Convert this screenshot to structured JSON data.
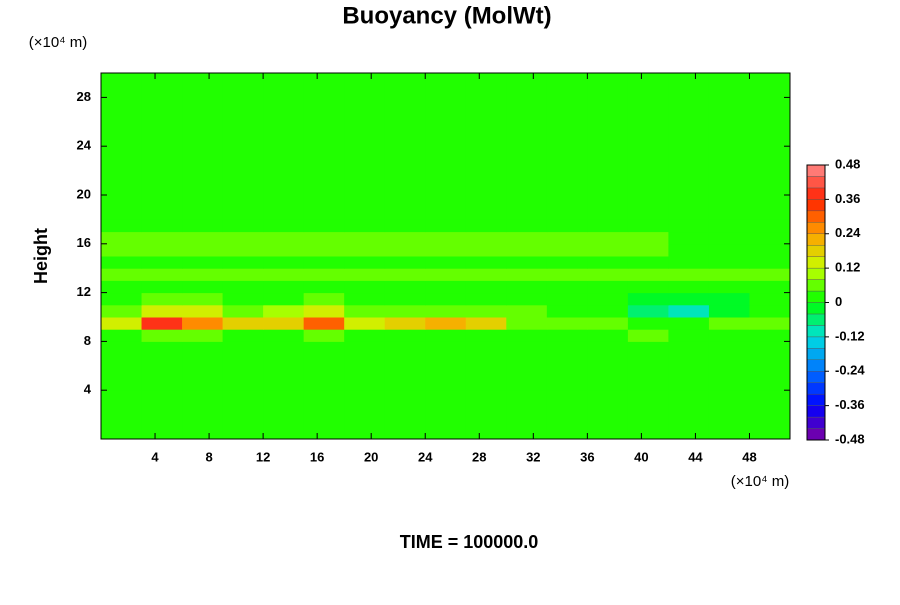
{
  "chart_data": {
    "type": "heatmap",
    "title": "Buoyancy (MolWt)",
    "y_label": "Height",
    "y_unit": "(×10⁴ m)",
    "x_unit": "(×10⁴ m)",
    "footer": "TIME = 100000.0",
    "x_edges": [
      0,
      3,
      6,
      9,
      12,
      15,
      18,
      21,
      24,
      27,
      30,
      33,
      36,
      39,
      42,
      45,
      48,
      51
    ],
    "y_edges": [
      0,
      4,
      8,
      9,
      10,
      11,
      12,
      13,
      14,
      15,
      16,
      17,
      18,
      30
    ],
    "z": [
      [
        0,
        0,
        0,
        0,
        0,
        0,
        0,
        0,
        0,
        0,
        0,
        0,
        0,
        0,
        0,
        0,
        0
      ],
      [
        0,
        0,
        0,
        0,
        0,
        0,
        0,
        0,
        0,
        0,
        0,
        0,
        0,
        0,
        0,
        0,
        0
      ],
      [
        0.02,
        0.04,
        0.04,
        0.02,
        0.02,
        0.04,
        0.02,
        0.02,
        0.02,
        0.02,
        0.02,
        0.02,
        0.02,
        0.04,
        0.02,
        0.02,
        0.02
      ],
      [
        0.12,
        0.36,
        0.24,
        0.16,
        0.2,
        0.28,
        0.14,
        0.2,
        0.22,
        0.16,
        0.08,
        0.06,
        0.06,
        0.02,
        0.02,
        0.04,
        0.08
      ],
      [
        0.06,
        0.14,
        0.12,
        0.08,
        0.1,
        0.12,
        0.06,
        0.08,
        0.08,
        0.06,
        0.04,
        0.02,
        0,
        -0.06,
        -0.08,
        -0.04,
        0.02
      ],
      [
        0.02,
        0.04,
        0.04,
        0.02,
        0.02,
        0.04,
        0.02,
        0.02,
        0.02,
        0.02,
        0.02,
        0.02,
        0,
        -0.04,
        -0.04,
        -0.02,
        0.02
      ],
      [
        0.02,
        0.02,
        0.02,
        0.02,
        0.02,
        0.02,
        0.02,
        0.02,
        0.02,
        0.02,
        0.02,
        0.02,
        0.02,
        0.02,
        0.02,
        0.02,
        0.02
      ],
      [
        0.04,
        0.04,
        0.04,
        0.04,
        0.04,
        0.04,
        0.04,
        0.04,
        0.04,
        0.04,
        0.04,
        0.04,
        0.04,
        0.04,
        0.04,
        0.04,
        0.04
      ],
      [
        0.02,
        0.02,
        0.02,
        0.02,
        0.02,
        0.02,
        0.02,
        0.02,
        0.02,
        0.02,
        0.02,
        0.02,
        0.02,
        0.02,
        0.02,
        0.02,
        0.02
      ],
      [
        0.04,
        0.04,
        0.04,
        0.04,
        0.04,
        0.04,
        0.04,
        0.04,
        0.04,
        0.04,
        0.04,
        0.04,
        0.04,
        0.04,
        0.02,
        0.02,
        0.02
      ],
      [
        0.06,
        0.06,
        0.06,
        0.06,
        0.06,
        0.06,
        0.06,
        0.06,
        0.06,
        0.06,
        0.06,
        0.06,
        0.06,
        0.06,
        0.02,
        0.02,
        0.02
      ],
      [
        0.02,
        0.02,
        0.02,
        0.02,
        0.02,
        0.02,
        0.02,
        0.02,
        0.02,
        0.02,
        0.02,
        0.02,
        0.02,
        0.02,
        0.02,
        0.02,
        0.02
      ],
      [
        0,
        0,
        0,
        0,
        0,
        0,
        0,
        0,
        0,
        0,
        0,
        0,
        0,
        0,
        0,
        0,
        0
      ]
    ],
    "xlim": [
      0,
      51
    ],
    "ylim": [
      0,
      30
    ],
    "xticks": [
      4,
      8,
      12,
      16,
      20,
      24,
      28,
      32,
      36,
      40,
      44,
      48
    ],
    "yticks": [
      4,
      8,
      12,
      16,
      20,
      24,
      28
    ],
    "clim": [
      -0.48,
      0.48
    ],
    "cticks": [
      -0.48,
      -0.36,
      -0.24,
      -0.12,
      0,
      0.12,
      0.24,
      0.36,
      0.48
    ],
    "colormap": [
      "#8000a0",
      "#0000ff",
      "#0070ff",
      "#00e0e0",
      "#00ff00",
      "#c8ff00",
      "#ffa000",
      "#ff2000",
      "#ff8c8c"
    ],
    "levels": 24
  }
}
